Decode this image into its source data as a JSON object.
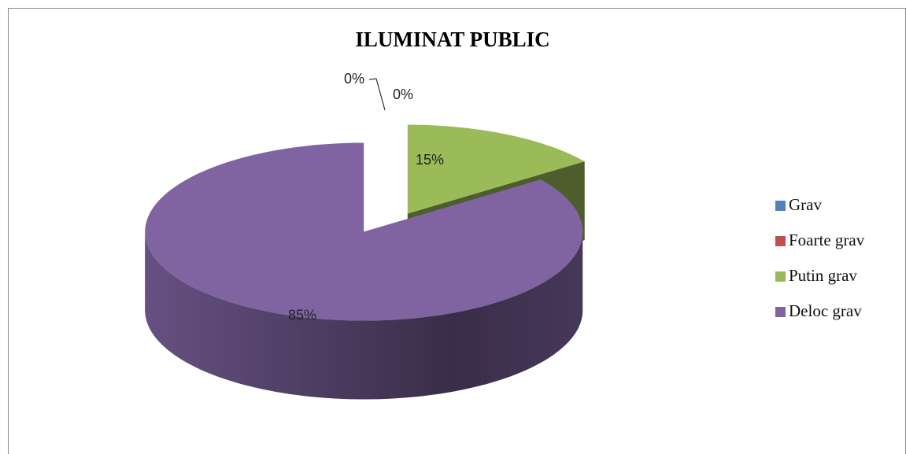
{
  "chart_data": {
    "type": "pie",
    "title": "ILUMINAT PUBLIC",
    "categories": [
      "Grav",
      "Foarte grav",
      "Putin grav",
      "Deloc grav"
    ],
    "values": [
      0,
      0,
      15,
      85
    ],
    "value_labels": [
      "0%",
      "0%",
      "15%",
      "85%"
    ],
    "colors": [
      "#4f81bd",
      "#c0504d",
      "#9bbb59",
      "#8064a2"
    ],
    "legend": "right"
  }
}
